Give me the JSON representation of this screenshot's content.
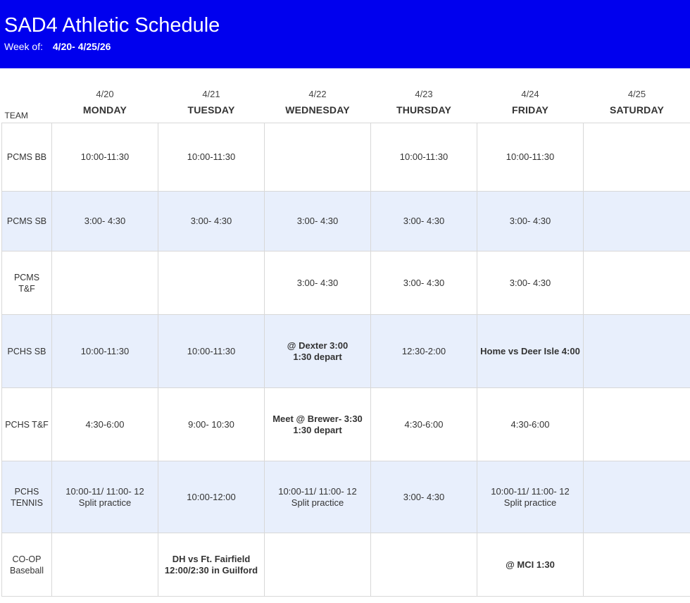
{
  "header": {
    "title": "SAD4 Athletic Schedule",
    "week_label": "Week of:",
    "week_range": "4/20- 4/25/26"
  },
  "columns": {
    "team_label": "TEAM",
    "days": [
      {
        "date": "4/20",
        "day": "MONDAY"
      },
      {
        "date": "4/21",
        "day": "TUESDAY"
      },
      {
        "date": "4/22",
        "day": "WEDNESDAY"
      },
      {
        "date": "4/23",
        "day": "THURSDAY"
      },
      {
        "date": "4/24",
        "day": "FRIDAY"
      },
      {
        "date": "4/25",
        "day": "SATURDAY"
      }
    ]
  },
  "rows": [
    {
      "team": [
        "PCMS BB"
      ],
      "shaded": false,
      "cells": [
        {
          "lines": [
            "10:00-11:30"
          ]
        },
        {
          "lines": [
            "10:00-11:30"
          ]
        },
        {
          "lines": []
        },
        {
          "lines": [
            "10:00-11:30"
          ]
        },
        {
          "lines": [
            "10:00-11:30"
          ]
        },
        {
          "lines": []
        }
      ]
    },
    {
      "team": [
        "PCMS SB"
      ],
      "shaded": true,
      "cells": [
        {
          "lines": [
            "3:00- 4:30"
          ]
        },
        {
          "lines": [
            "3:00- 4:30"
          ]
        },
        {
          "lines": [
            "3:00- 4:30"
          ]
        },
        {
          "lines": [
            "3:00- 4:30"
          ]
        },
        {
          "lines": [
            "3:00- 4:30"
          ]
        },
        {
          "lines": []
        }
      ]
    },
    {
      "team": [
        "PCMS T&F"
      ],
      "shaded": false,
      "cells": [
        {
          "lines": []
        },
        {
          "lines": []
        },
        {
          "lines": [
            "3:00- 4:30"
          ]
        },
        {
          "lines": [
            "3:00- 4:30"
          ]
        },
        {
          "lines": [
            "3:00- 4:30"
          ]
        },
        {
          "lines": []
        }
      ]
    },
    {
      "team": [
        "PCHS SB"
      ],
      "shaded": true,
      "cells": [
        {
          "lines": [
            "10:00-11:30"
          ]
        },
        {
          "lines": [
            "10:00-11:30"
          ]
        },
        {
          "lines": [
            "@ Dexter 3:00",
            "1:30 depart"
          ],
          "bold": true
        },
        {
          "lines": [
            "12:30-2:00"
          ]
        },
        {
          "lines": [
            "Home vs Deer Isle 4:00"
          ],
          "bold": true
        },
        {
          "lines": []
        }
      ]
    },
    {
      "team": [
        "PCHS T&F"
      ],
      "shaded": false,
      "cells": [
        {
          "lines": [
            "4:30-6:00"
          ]
        },
        {
          "lines": [
            "9:00- 10:30"
          ]
        },
        {
          "lines": [
            "Meet @ Brewer- 3:30",
            "1:30 depart"
          ],
          "bold": true
        },
        {
          "lines": [
            "4:30-6:00"
          ]
        },
        {
          "lines": [
            "4:30-6:00"
          ]
        },
        {
          "lines": []
        }
      ]
    },
    {
      "team": [
        "PCHS",
        "TENNIS"
      ],
      "shaded": true,
      "cells": [
        {
          "lines": [
            "10:00-11/ 11:00- 12",
            "Split practice"
          ]
        },
        {
          "lines": [
            "10:00-12:00"
          ]
        },
        {
          "lines": [
            "10:00-11/ 11:00- 12",
            "Split practice"
          ]
        },
        {
          "lines": [
            "3:00- 4:30"
          ]
        },
        {
          "lines": [
            "10:00-11/ 11:00- 12",
            "Split practice"
          ]
        },
        {
          "lines": []
        }
      ]
    },
    {
      "team": [
        "CO-OP",
        "Baseball"
      ],
      "shaded": false,
      "cells": [
        {
          "lines": []
        },
        {
          "lines": [
            "DH vs Ft. Fairfield",
            "12:00/2:30 in Guilford"
          ],
          "bold": true
        },
        {
          "lines": []
        },
        {
          "lines": []
        },
        {
          "lines": [
            "@ MCI 1:30"
          ],
          "bold": true
        },
        {
          "lines": []
        }
      ]
    }
  ],
  "colors": {
    "banner": "#0000ee",
    "shaded_row": "#e8effc",
    "grid": "#d8d8d8"
  }
}
